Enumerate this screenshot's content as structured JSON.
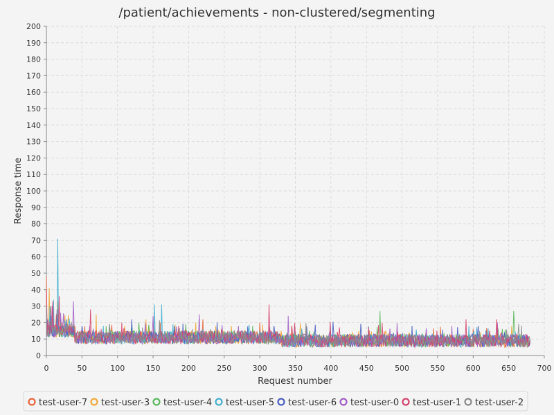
{
  "chart_data": {
    "type": "line",
    "title": "/patient/achievements - non-clustered/segmenting",
    "xlabel": "Request number",
    "ylabel": "Response time",
    "xlim": [
      0,
      700
    ],
    "ylim": [
      0,
      200
    ],
    "xticks": [
      0,
      50,
      100,
      150,
      200,
      250,
      300,
      350,
      400,
      450,
      500,
      550,
      600,
      650,
      700
    ],
    "yticks": [
      0,
      10,
      20,
      30,
      40,
      50,
      60,
      70,
      80,
      90,
      100,
      110,
      120,
      130,
      140,
      150,
      160,
      170,
      180,
      190,
      200
    ],
    "grid": true,
    "legend_position": "bottom",
    "series": [
      {
        "name": "test-user-7",
        "color": "#e8663d",
        "points_count": 680,
        "peaks": [
          [
            0,
            48
          ],
          [
            3,
            12
          ],
          [
            6,
            30
          ],
          [
            10,
            18
          ],
          [
            14,
            25
          ],
          [
            22,
            20
          ],
          [
            40,
            18
          ],
          [
            90,
            15
          ],
          [
            160,
            20
          ],
          [
            220,
            22
          ],
          [
            300,
            20
          ],
          [
            360,
            14
          ],
          [
            420,
            12
          ],
          [
            500,
            12
          ],
          [
            560,
            12
          ],
          [
            620,
            12
          ],
          [
            680,
            8
          ]
        ]
      },
      {
        "name": "test-user-3",
        "color": "#f2a93b",
        "points_count": 680,
        "peaks": [
          [
            0,
            35
          ],
          [
            4,
            41
          ],
          [
            8,
            26
          ],
          [
            16,
            33
          ],
          [
            30,
            20
          ],
          [
            70,
            25
          ],
          [
            110,
            18
          ],
          [
            140,
            22
          ],
          [
            210,
            20
          ],
          [
            260,
            18
          ],
          [
            330,
            15
          ],
          [
            400,
            12
          ],
          [
            480,
            13
          ],
          [
            540,
            12
          ],
          [
            610,
            14
          ],
          [
            680,
            10
          ]
        ]
      },
      {
        "name": "test-user-4",
        "color": "#5cb85c",
        "points_count": 680,
        "peaks": [
          [
            0,
            30
          ],
          [
            5,
            20
          ],
          [
            20,
            22
          ],
          [
            60,
            15
          ],
          [
            130,
            20
          ],
          [
            200,
            15
          ],
          [
            290,
            18
          ],
          [
            350,
            14
          ],
          [
            469,
            27
          ],
          [
            520,
            14
          ],
          [
            580,
            12
          ],
          [
            657,
            27
          ],
          [
            680,
            8
          ]
        ]
      },
      {
        "name": "test-user-5",
        "color": "#46b0cf",
        "points_count": 680,
        "peaks": [
          [
            0,
            25
          ],
          [
            5,
            30
          ],
          [
            10,
            34
          ],
          [
            16,
            71
          ],
          [
            25,
            20
          ],
          [
            80,
            18
          ],
          [
            152,
            31
          ],
          [
            162,
            31
          ],
          [
            220,
            16
          ],
          [
            300,
            15
          ],
          [
            380,
            13
          ],
          [
            450,
            12
          ],
          [
            530,
            12
          ],
          [
            600,
            13
          ],
          [
            680,
            9
          ]
        ]
      },
      {
        "name": "test-user-6",
        "color": "#4a5fc1",
        "points_count": 680,
        "peaks": [
          [
            0,
            28
          ],
          [
            6,
            24
          ],
          [
            15,
            28
          ],
          [
            50,
            18
          ],
          [
            120,
            22
          ],
          [
            180,
            18
          ],
          [
            240,
            20
          ],
          [
            320,
            18
          ],
          [
            390,
            12
          ],
          [
            460,
            13
          ],
          [
            550,
            12
          ],
          [
            607,
            18
          ],
          [
            670,
            12
          ],
          [
            680,
            9
          ]
        ]
      },
      {
        "name": "test-user-0",
        "color": "#a25ec4",
        "points_count": 680,
        "peaks": [
          [
            0,
            26
          ],
          [
            8,
            30
          ],
          [
            20,
            26
          ],
          [
            38,
            33
          ],
          [
            100,
            15
          ],
          [
            150,
            24
          ],
          [
            215,
            25
          ],
          [
            270,
            18
          ],
          [
            340,
            24
          ],
          [
            410,
            12
          ],
          [
            490,
            12
          ],
          [
            570,
            18
          ],
          [
            640,
            14
          ],
          [
            680,
            8
          ]
        ]
      },
      {
        "name": "test-user-1",
        "color": "#d6446e",
        "points_count": 680,
        "peaks": [
          [
            0,
            40
          ],
          [
            9,
            33
          ],
          [
            18,
            36
          ],
          [
            62,
            28
          ],
          [
            106,
            20
          ],
          [
            186,
            18
          ],
          [
            246,
            16
          ],
          [
            313,
            31
          ],
          [
            345,
            18
          ],
          [
            430,
            12
          ],
          [
            515,
            12
          ],
          [
            590,
            22
          ],
          [
            633,
            22
          ],
          [
            680,
            9
          ]
        ]
      },
      {
        "name": "test-user-2",
        "color": "#8c8c8c",
        "points_count": 680,
        "peaks": [
          [
            0,
            30
          ],
          [
            7,
            22
          ],
          [
            24,
            18
          ],
          [
            75,
            15
          ],
          [
            135,
            17
          ],
          [
            205,
            16
          ],
          [
            280,
            15
          ],
          [
            355,
            13
          ],
          [
            440,
            11
          ],
          [
            510,
            11
          ],
          [
            595,
            12
          ],
          [
            660,
            12
          ],
          [
            680,
            7
          ]
        ]
      }
    ]
  }
}
